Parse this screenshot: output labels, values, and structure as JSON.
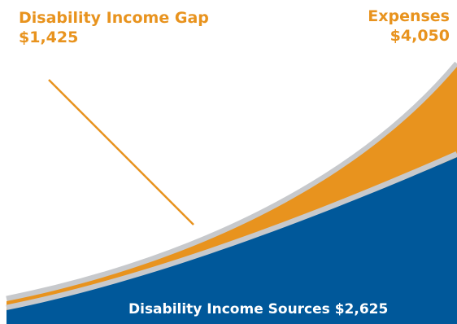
{
  "chart_data": {
    "type": "area",
    "series": [
      {
        "name": "Disability Income Sources",
        "value": 2625,
        "color": "#00589a"
      },
      {
        "name": "Disability Income Gap",
        "value": 1425,
        "color": "#e8931e"
      }
    ],
    "total_expenses": 4050,
    "labels": {
      "gap_title": "Disability Income Gap",
      "gap_value": "$1,425",
      "expenses_title": "Expenses",
      "expenses_value": "$4,050",
      "sources": "Disability Income Sources $2,625"
    },
    "colors": {
      "gap": "#e8931e",
      "sources": "#00589a",
      "outline": "#c7c9cc",
      "leader": "#e8931e",
      "label": "#e8931e"
    }
  }
}
